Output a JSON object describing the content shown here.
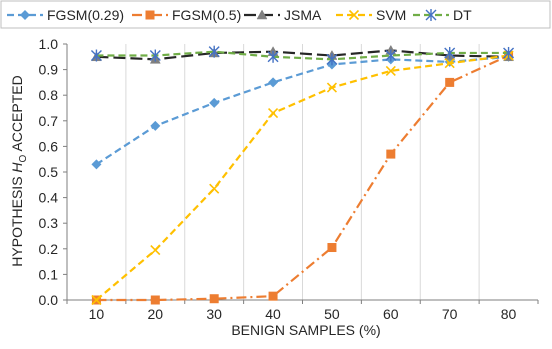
{
  "chart_data": {
    "type": "line",
    "title": "",
    "xlabel": "BENIGN SAMPLES (%)",
    "ylabel_prefix": "HYPOTHESIS ",
    "ylabel_var": "H",
    "ylabel_sub": "O",
    "ylabel_suffix": " ACCEPTED",
    "categories": [
      "10",
      "20",
      "30",
      "40",
      "50",
      "60",
      "70",
      "80"
    ],
    "y_ticks": [
      "0.0",
      "0.1",
      "0.2",
      "0.3",
      "0.4",
      "0.5",
      "0.6",
      "0.7",
      "0.8",
      "0.9",
      "1.0"
    ],
    "ylim": [
      0,
      1.0
    ],
    "grid": "vertical",
    "legend_position": "top",
    "series": [
      {
        "name": "FGSM(0.29)",
        "color": "#5B9BD5",
        "marker": "diamond",
        "dash": "dashed",
        "values": [
          0.53,
          0.68,
          0.77,
          0.85,
          0.92,
          0.94,
          0.93,
          0.95
        ]
      },
      {
        "name": "FGSM(0.5)",
        "color": "#ED7D31",
        "marker": "square",
        "dash": "dashdot",
        "values": [
          0.0,
          0.0,
          0.005,
          0.015,
          0.205,
          0.57,
          0.85,
          0.955
        ]
      },
      {
        "name": "JSMA",
        "color": "#262626",
        "marker": "triangle",
        "dash": "longdash",
        "values": [
          0.95,
          0.94,
          0.965,
          0.97,
          0.955,
          0.975,
          0.955,
          0.95
        ]
      },
      {
        "name": "SVM",
        "color": "#FFC000",
        "marker": "x",
        "dash": "dashed",
        "values": [
          0.0,
          0.195,
          0.435,
          0.73,
          0.83,
          0.895,
          0.925,
          0.955
        ]
      },
      {
        "name": "DT",
        "color": "#70AD47",
        "marker": "star",
        "dash": "dashed",
        "values": [
          0.955,
          0.955,
          0.97,
          0.95,
          0.94,
          0.955,
          0.965,
          0.965
        ]
      }
    ]
  }
}
